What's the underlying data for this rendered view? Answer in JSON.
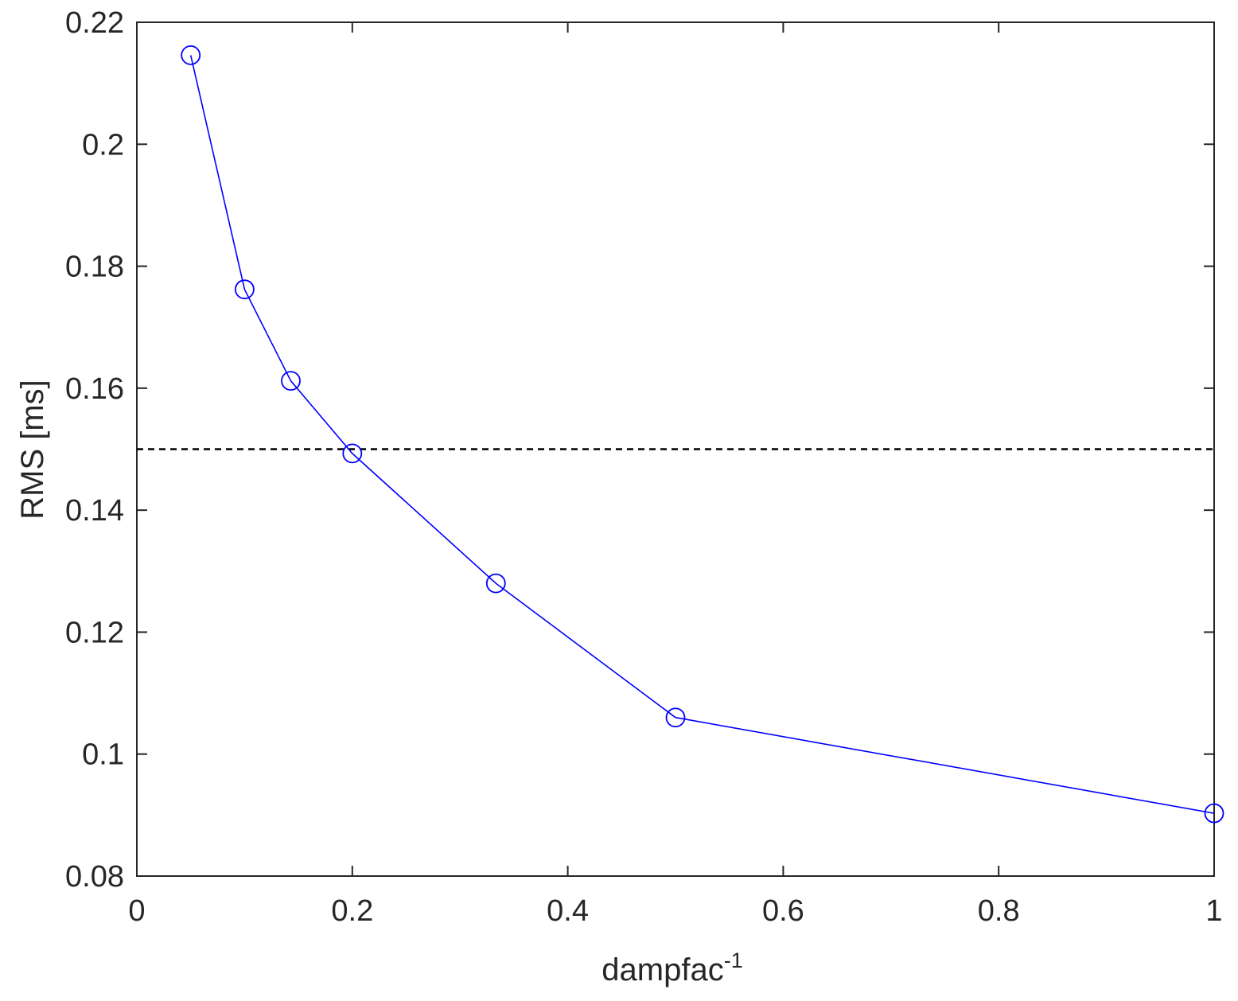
{
  "chart_data": {
    "type": "line",
    "xlabel": "dampfac",
    "xlabel_superscript": "-1",
    "ylabel": "RMS [ms]",
    "xlim": [
      0,
      1
    ],
    "ylim": [
      0.08,
      0.22
    ],
    "xticks": [
      0,
      0.2,
      0.4,
      0.6,
      0.8,
      1
    ],
    "xtick_labels": [
      "0",
      "0.2",
      "0.4",
      "0.6",
      "0.8",
      "1"
    ],
    "yticks": [
      0.08,
      0.1,
      0.12,
      0.14,
      0.16,
      0.18,
      0.2,
      0.22
    ],
    "ytick_labels": [
      "0.08",
      "0.1",
      "0.12",
      "0.14",
      "0.16",
      "0.18",
      "0.2",
      "0.22"
    ],
    "grid": false,
    "box": true,
    "series": [
      {
        "x": [
          0.05,
          0.1,
          0.1429,
          0.2,
          0.3333,
          0.5,
          1.0
        ],
        "y": [
          0.2146,
          0.1762,
          0.1612,
          0.1493,
          0.128,
          0.106,
          0.0903
        ],
        "color": "#0000ff",
        "marker": "circle",
        "line_style": "solid"
      }
    ],
    "reference_lines": [
      {
        "orientation": "horizontal",
        "y": 0.15,
        "color": "#000000",
        "line_style": "dashed"
      }
    ]
  }
}
